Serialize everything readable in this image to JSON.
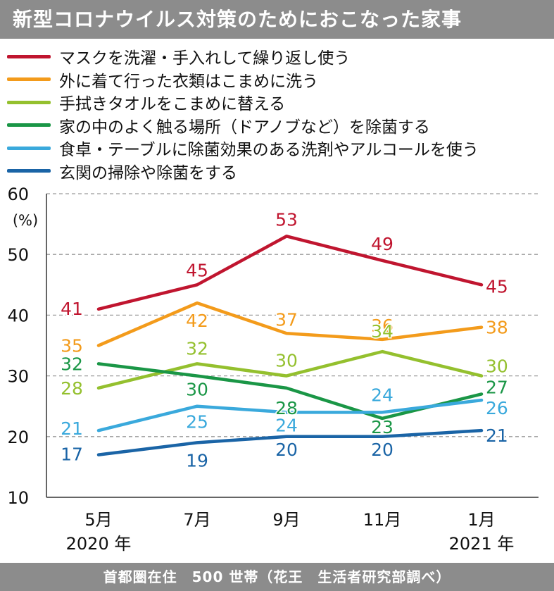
{
  "title": "新型コロナウイルス対策のためにおこなった家事",
  "footer": "首都圏在住　500 世帯（花王　生活者研究部調べ）",
  "chart_data": {
    "type": "line",
    "categories": [
      "5月",
      "7月",
      "9月",
      "11月",
      "1月"
    ],
    "year_labels": [
      "2020 年",
      "",
      "",
      "",
      "2021 年"
    ],
    "ylabel": "(%)",
    "ylim": [
      10,
      60
    ],
    "yticks": [
      10,
      20,
      30,
      40,
      50,
      60
    ],
    "grid": true,
    "legend_position": "top",
    "series": [
      {
        "name": "マスクを洗濯・手入れして繰り返し使う",
        "color": "#c0152f",
        "values": [
          41,
          45,
          53,
          49,
          45
        ]
      },
      {
        "name": "外に着て行った衣類はこまめに洗う",
        "color": "#f39b1b",
        "values": [
          35,
          42,
          37,
          36,
          38
        ]
      },
      {
        "name": "手拭きタオルをこまめに替える",
        "color": "#94c02e",
        "values": [
          28,
          32,
          30,
          34,
          30
        ]
      },
      {
        "name": "家の中のよく触る場所（ドアノブなど）を除菌する",
        "color": "#1a9646",
        "values": [
          32,
          30,
          28,
          23,
          27
        ]
      },
      {
        "name": "食卓・テーブルに除菌効果のある洗剤やアルコールを使う",
        "color": "#3aa9dc",
        "values": [
          21,
          25,
          24,
          24,
          26
        ]
      },
      {
        "name": "玄関の掃除や除菌をする",
        "color": "#1a64a6",
        "values": [
          17,
          19,
          20,
          20,
          21
        ]
      }
    ]
  }
}
